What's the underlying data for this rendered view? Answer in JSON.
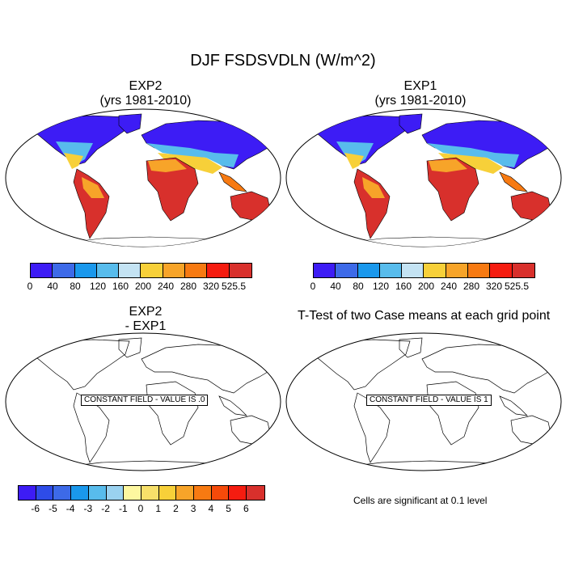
{
  "title": "DJF FSDSVDLN (W/m^2)",
  "panels": {
    "top_left": {
      "title_line1": "EXP2",
      "title_line2": "(yrs 1981-2010)"
    },
    "top_right": {
      "title_line1": "EXP1",
      "title_line2": "(yrs 1981-2010)"
    },
    "bottom_left": {
      "title_line1": "EXP2",
      "title_line2": "- EXP1",
      "constant_label": "CONSTANT FIELD - VALUE IS .0"
    },
    "bottom_right": {
      "title": "T-Test of two Case means at each grid point",
      "constant_label": "CONSTANT FIELD - VALUE IS 1",
      "note": "Cells are significant at 0.1 level"
    }
  },
  "colorbar_main": {
    "labels": [
      "0",
      "40",
      "80",
      "120",
      "160",
      "200",
      "240",
      "280",
      "320",
      "525.5"
    ],
    "colors": [
      "#3d1cf5",
      "#3d6ae8",
      "#1a98ec",
      "#58bcec",
      "#c4e3f3",
      "#f7d039",
      "#f7a429",
      "#f77a12",
      "#f51c10",
      "#d8302c"
    ]
  },
  "colorbar_diff": {
    "labels": [
      "-6",
      "-5",
      "-4",
      "-3",
      "-2",
      "-1",
      "0",
      "1",
      "2",
      "3",
      "4",
      "5",
      "6"
    ],
    "colors": [
      "#3d1cf5",
      "#2e4ce8",
      "#3d6ae8",
      "#1a98ec",
      "#58bcec",
      "#9ad2f0",
      "#fdf7a0",
      "#f7e06a",
      "#f7d039",
      "#f7a429",
      "#f77a12",
      "#f54a0a",
      "#f51c10",
      "#d8302c"
    ]
  }
}
